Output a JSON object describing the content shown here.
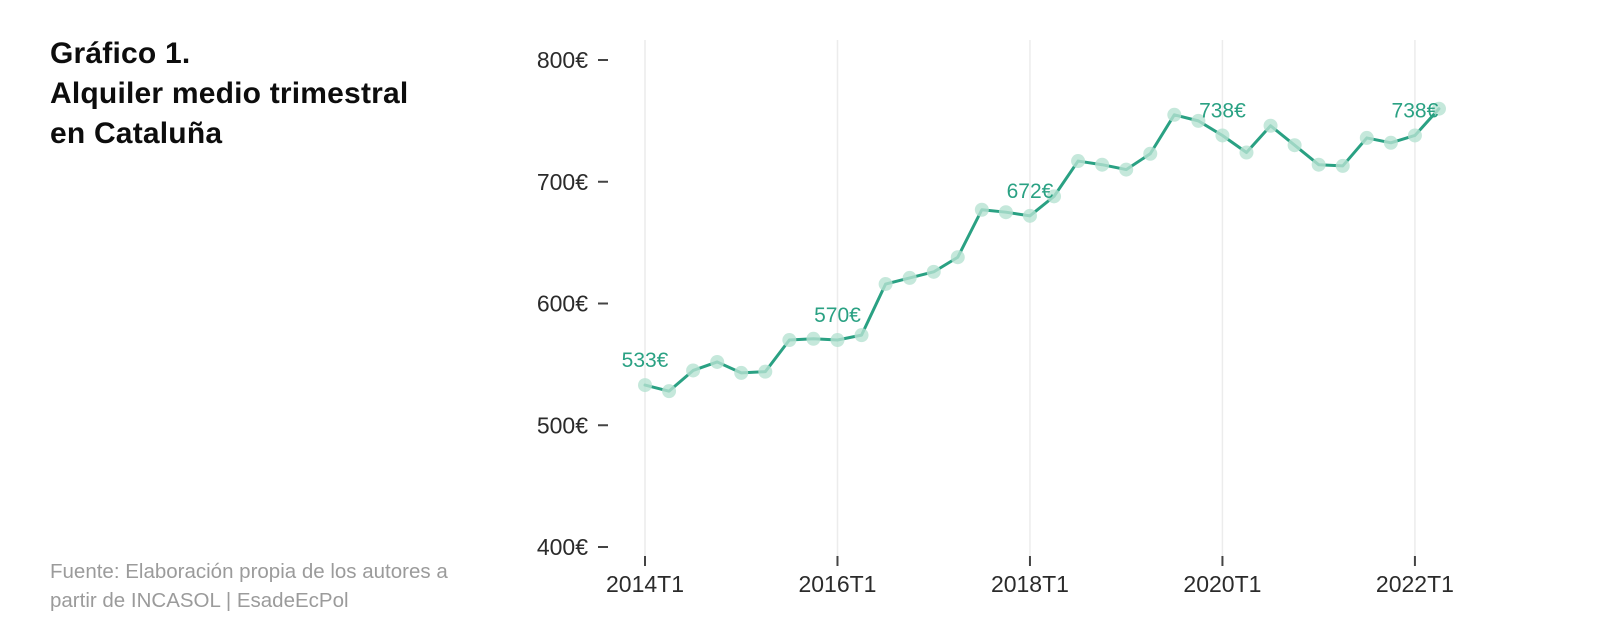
{
  "title": {
    "text": "Gráfico 1.\nAlquiler medio trimestral\nen Cataluña"
  },
  "source": {
    "text": "Fuente: Elaboración propia de los autores a\npartir de INCASOL | EsadeEcPol"
  },
  "chart_data": {
    "type": "line",
    "title": "Gráfico 1. Alquiler medio trimestral en Cataluña",
    "xlabel": "",
    "ylabel": "",
    "x": [
      "2014T1",
      "2014T2",
      "2014T3",
      "2014T4",
      "2015T1",
      "2015T2",
      "2015T3",
      "2015T4",
      "2016T1",
      "2016T2",
      "2016T3",
      "2016T4",
      "2017T1",
      "2017T2",
      "2017T3",
      "2017T4",
      "2018T1",
      "2018T2",
      "2018T3",
      "2018T4",
      "2019T1",
      "2019T2",
      "2019T3",
      "2019T4",
      "2020T1",
      "2020T2",
      "2020T3",
      "2020T4",
      "2021T1",
      "2021T2",
      "2021T3",
      "2021T4",
      "2022T1",
      "2022T2"
    ],
    "values": [
      533,
      528,
      545,
      552,
      543,
      544,
      570,
      571,
      570,
      574,
      616,
      621,
      626,
      638,
      677,
      675,
      672,
      688,
      717,
      714,
      710,
      723,
      755,
      750,
      738,
      724,
      746,
      730,
      714,
      713,
      736,
      732,
      738,
      760
    ],
    "xticks": [
      "2014T1",
      "2016T1",
      "2018T1",
      "2020T1",
      "2022T1"
    ],
    "yticks": [
      {
        "value": 800,
        "label": "800€"
      },
      {
        "value": 700,
        "label": "700€"
      },
      {
        "value": 600,
        "label": "600€"
      },
      {
        "value": 500,
        "label": "500€"
      },
      {
        "value": 400,
        "label": "400€"
      }
    ],
    "ylim": [
      400,
      800
    ],
    "grid": "vertical-at-xticks",
    "legend": "none",
    "annotations": [
      {
        "index": 0,
        "label": "533€"
      },
      {
        "index": 8,
        "label": "570€"
      },
      {
        "index": 16,
        "label": "672€"
      },
      {
        "index": 24,
        "label": "738€"
      },
      {
        "index": 32,
        "label": "738€"
      }
    ],
    "colors": {
      "line": "#2aa183",
      "point": "#b7e2d2",
      "label": "#2aa183",
      "axis_text": "#2b2b2b",
      "grid": "#ececec",
      "tick": "#444444"
    }
  }
}
